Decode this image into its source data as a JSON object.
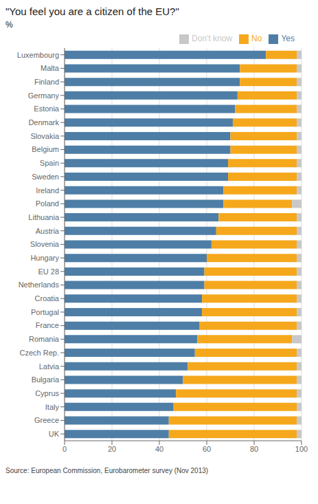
{
  "chart_data": {
    "type": "bar",
    "orientation": "horizontal",
    "stacked": true,
    "title": "\"You feel you are a citizen of the EU?\"",
    "subtitle": "%",
    "annotations": [
      "Source: European Commission, Eurobarometer survey (Nov 2013)"
    ],
    "categories": [
      "Luxembourg",
      "Malta",
      "Finland",
      "Germany",
      "Estonia",
      "Denmark",
      "Slovakia",
      "Belgium",
      "Spain",
      "Sweden",
      "Ireland",
      "Poland",
      "Lithuania",
      "Austria",
      "Slovenia",
      "Hungary",
      "EU 28",
      "Netherlands",
      "Croatia",
      "Portugal",
      "France",
      "Romania",
      "Czech Rep.",
      "Latvia",
      "Bulgaria",
      "Cyprus",
      "Italy",
      "Greece",
      "UK"
    ],
    "series": [
      {
        "name": "Yes",
        "color": "#4e7ea6",
        "values": [
          85,
          74,
          74,
          73,
          72,
          71,
          70,
          70,
          69,
          69,
          67,
          67,
          65,
          64,
          62,
          60,
          59,
          59,
          58,
          58,
          57,
          56,
          55,
          52,
          50,
          47,
          46,
          44,
          44
        ]
      },
      {
        "name": "No",
        "color": "#f5a81c",
        "values": [
          13,
          24,
          24,
          25,
          26,
          27,
          28,
          28,
          29,
          29,
          31,
          29,
          33,
          34,
          36,
          38,
          39,
          39,
          40,
          40,
          41,
          40,
          43,
          46,
          48,
          51,
          52,
          54,
          54
        ]
      },
      {
        "name": "Don't know",
        "color": "#c8c8c8",
        "values": [
          2,
          2,
          2,
          2,
          2,
          2,
          2,
          2,
          2,
          2,
          2,
          4,
          2,
          2,
          2,
          2,
          2,
          2,
          2,
          2,
          2,
          4,
          2,
          2,
          2,
          2,
          2,
          2,
          2
        ]
      }
    ],
    "xlim": [
      0,
      100
    ],
    "xticks": [
      0,
      20,
      40,
      60,
      80,
      100
    ],
    "grid": true,
    "legend": "upper right"
  }
}
